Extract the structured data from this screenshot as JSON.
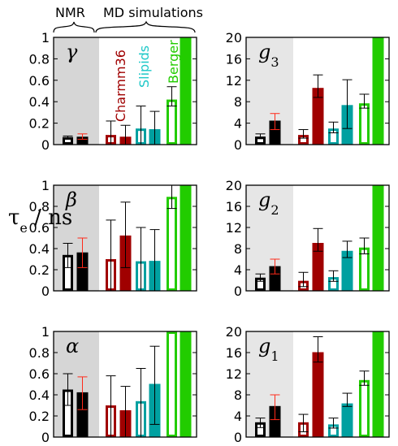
{
  "figure": {
    "group_labels": {
      "nmr": "NMR",
      "md": "MD simulations"
    },
    "y_label": {
      "main": "τ",
      "sub": "e",
      "rest": " / ns"
    },
    "colors": {
      "black": "#000000",
      "red_err": "#ff2a1a",
      "charmm": "#a00000",
      "slipids": "#00a0a0",
      "slipids_text": "#1ec8c8",
      "berger": "#22cc00",
      "shade": "#d6d6d6",
      "shade_light": "#e6e6e6"
    }
  },
  "chart_data": [
    {
      "id": "gamma",
      "label": "γ",
      "type": "bar",
      "ylim": [
        0,
        1
      ],
      "ticks": [
        "0",
        "0.2",
        "0.4",
        "0.6",
        "0.8",
        "1"
      ],
      "series_labels": [
        "Charmm36",
        "Slipids",
        "Berger"
      ],
      "bars": [
        {
          "series": "NMR",
          "style": "open",
          "value": 0.07,
          "err": [
            0.05,
            0.08
          ]
        },
        {
          "series": "NMR",
          "style": "filled",
          "value": 0.07,
          "err": [
            0.05,
            0.1
          ]
        },
        {
          "series": "Charmm36",
          "style": "open",
          "value": 0.09,
          "err": [
            0.0,
            0.22
          ]
        },
        {
          "series": "Charmm36",
          "style": "filled",
          "value": 0.07,
          "err": [
            0.0,
            0.18
          ]
        },
        {
          "series": "Slipids",
          "style": "open",
          "value": 0.15,
          "err": [
            0.0,
            0.36
          ]
        },
        {
          "series": "Slipids",
          "style": "filled",
          "value": 0.14,
          "err": [
            0.0,
            0.31
          ]
        },
        {
          "series": "Berger",
          "style": "open",
          "value": 0.42,
          "err": [
            0.36,
            0.54
          ]
        },
        {
          "series": "Berger",
          "style": "filled",
          "value": 1.0,
          "err": null
        }
      ]
    },
    {
      "id": "g3",
      "label": "g3",
      "type": "bar",
      "ylim": [
        0,
        20
      ],
      "ticks": [
        "0",
        "4",
        "8",
        "12",
        "16",
        "20"
      ],
      "bars": [
        {
          "series": "NMR",
          "style": "open",
          "value": 1.5,
          "err": [
            1.1,
            2.0
          ]
        },
        {
          "series": "NMR",
          "style": "filled",
          "value": 4.4,
          "err": [
            2.8,
            5.8
          ]
        },
        {
          "series": "Charmm36",
          "style": "open",
          "value": 1.8,
          "err": [
            1.2,
            2.8
          ]
        },
        {
          "series": "Charmm36",
          "style": "filled",
          "value": 10.5,
          "err": [
            8.8,
            13.0
          ]
        },
        {
          "series": "Slipids",
          "style": "open",
          "value": 3.0,
          "err": [
            2.2,
            4.2
          ]
        },
        {
          "series": "Slipids",
          "style": "filled",
          "value": 7.3,
          "err": [
            3.0,
            12.1
          ]
        },
        {
          "series": "Berger",
          "style": "open",
          "value": 7.7,
          "err": [
            6.8,
            9.4
          ]
        },
        {
          "series": "Berger",
          "style": "filled",
          "value": 20.0,
          "err": null
        }
      ]
    },
    {
      "id": "beta",
      "label": "β",
      "type": "bar",
      "ylim": [
        0,
        1
      ],
      "ticks": [
        "0",
        "0.2",
        "0.4",
        "0.6",
        "0.8",
        "1"
      ],
      "bars": [
        {
          "series": "NMR",
          "style": "open",
          "value": 0.34,
          "err": [
            0.22,
            0.45
          ]
        },
        {
          "series": "NMR",
          "style": "filled",
          "value": 0.36,
          "err": [
            0.22,
            0.5
          ]
        },
        {
          "series": "Charmm36",
          "style": "open",
          "value": 0.3,
          "err": [
            0.0,
            0.67
          ]
        },
        {
          "series": "Charmm36",
          "style": "filled",
          "value": 0.52,
          "err": [
            0.22,
            0.84
          ]
        },
        {
          "series": "Slipids",
          "style": "open",
          "value": 0.28,
          "err": [
            0.0,
            0.6
          ]
        },
        {
          "series": "Slipids",
          "style": "filled",
          "value": 0.28,
          "err": [
            0.0,
            0.58
          ]
        },
        {
          "series": "Berger",
          "style": "open",
          "value": 0.89,
          "err": [
            0.78,
            1.0
          ]
        },
        {
          "series": "Berger",
          "style": "filled",
          "value": 1.0,
          "err": null
        }
      ]
    },
    {
      "id": "g2",
      "label": "g2",
      "type": "bar",
      "ylim": [
        0,
        20
      ],
      "ticks": [
        "0",
        "4",
        "8",
        "12",
        "16",
        "20"
      ],
      "bars": [
        {
          "series": "NMR",
          "style": "open",
          "value": 2.5,
          "err": [
            1.8,
            3.2
          ]
        },
        {
          "series": "NMR",
          "style": "filled",
          "value": 4.6,
          "err": [
            3.2,
            6.0
          ]
        },
        {
          "series": "Charmm36",
          "style": "open",
          "value": 1.9,
          "err": [
            0.8,
            3.5
          ]
        },
        {
          "series": "Charmm36",
          "style": "filled",
          "value": 9.0,
          "err": [
            7.5,
            11.8
          ]
        },
        {
          "series": "Slipids",
          "style": "open",
          "value": 2.6,
          "err": [
            1.8,
            3.8
          ]
        },
        {
          "series": "Slipids",
          "style": "filled",
          "value": 7.5,
          "err": [
            6.3,
            9.4
          ]
        },
        {
          "series": "Berger",
          "style": "open",
          "value": 8.2,
          "err": [
            7.0,
            10.0
          ]
        },
        {
          "series": "Berger",
          "style": "filled",
          "value": 20.0,
          "err": null
        }
      ]
    },
    {
      "id": "alpha",
      "label": "α",
      "type": "bar",
      "ylim": [
        0,
        1
      ],
      "ticks": [
        "0",
        "0.2",
        "0.4",
        "0.6",
        "0.8",
        "1"
      ],
      "bars": [
        {
          "series": "NMR",
          "style": "open",
          "value": 0.45,
          "err": [
            0.3,
            0.6
          ]
        },
        {
          "series": "NMR",
          "style": "filled",
          "value": 0.42,
          "err": [
            0.26,
            0.57
          ]
        },
        {
          "series": "Charmm36",
          "style": "open",
          "value": 0.3,
          "err": [
            0.0,
            0.58
          ]
        },
        {
          "series": "Charmm36",
          "style": "filled",
          "value": 0.25,
          "err": [
            0.0,
            0.48
          ]
        },
        {
          "series": "Slipids",
          "style": "open",
          "value": 0.34,
          "err": [
            0.0,
            0.65
          ]
        },
        {
          "series": "Slipids",
          "style": "filled",
          "value": 0.5,
          "err": [
            0.12,
            0.86
          ]
        },
        {
          "series": "Berger",
          "style": "open",
          "value": 1.0,
          "err": null
        },
        {
          "series": "Berger",
          "style": "filled",
          "value": 1.0,
          "err": null
        }
      ]
    },
    {
      "id": "g1",
      "label": "g1",
      "type": "bar",
      "ylim": [
        0,
        20
      ],
      "ticks": [
        "0",
        "4",
        "8",
        "12",
        "16",
        "20"
      ],
      "bars": [
        {
          "series": "NMR",
          "style": "open",
          "value": 2.8,
          "err": [
            1.8,
            3.6
          ]
        },
        {
          "series": "NMR",
          "style": "filled",
          "value": 5.8,
          "err": [
            3.3,
            8.0
          ]
        },
        {
          "series": "Charmm36",
          "style": "open",
          "value": 2.8,
          "err": [
            1.0,
            4.3
          ]
        },
        {
          "series": "Charmm36",
          "style": "filled",
          "value": 16.0,
          "err": [
            14.2,
            19.0
          ]
        },
        {
          "series": "Slipids",
          "style": "open",
          "value": 2.4,
          "err": [
            1.7,
            3.6
          ]
        },
        {
          "series": "Slipids",
          "style": "filled",
          "value": 6.3,
          "err": [
            5.8,
            8.3
          ]
        },
        {
          "series": "Berger",
          "style": "open",
          "value": 10.8,
          "err": [
            9.8,
            12.5
          ]
        },
        {
          "series": "Berger",
          "style": "filled",
          "value": 20.0,
          "err": null
        }
      ]
    }
  ]
}
